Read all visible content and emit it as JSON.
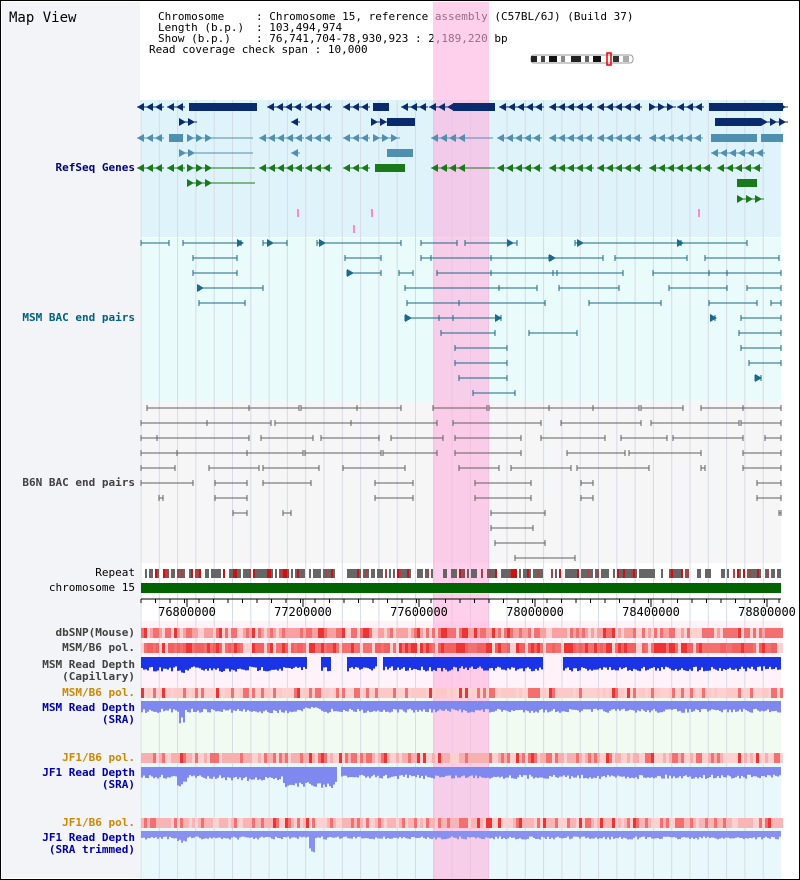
{
  "view_title": "Map View",
  "info": {
    "chromosome_label": "Chromosome",
    "chromosome_value": "Chromosome 15, reference assembly (C57BL/6J) (Build 37)",
    "length_label": "Length (b.p.)",
    "length_value": "103,494,974",
    "show_label": "Show (b.p.)",
    "show_value": "76,741,704-78,930,923 : 2,189,220 bp",
    "span_label": "Read coverage check span",
    "span_value": "10,000"
  },
  "tracks": {
    "refseq": "RefSeq Genes",
    "msm_bac": "MSM BAC end pairs",
    "b6n_bac": "B6N BAC end pairs",
    "repeat": "Repeat",
    "chromosome": "chromosome 15",
    "dbsnp": "dbSNP(Mouse)",
    "msm_b6_pol_1": "MSM/B6 pol.",
    "msm_depth_cap_1": "MSM Read Depth",
    "msm_depth_cap_2": "(Capillary)",
    "msm_b6_pol_2": "MSM/B6 pol.",
    "msm_depth_sra_1": "MSM Read Depth",
    "msm_depth_sra_2": "(SRA)",
    "jf1_pol_1": "JF1/B6 pol.",
    "jf1_depth_sra_1": "JF1 Read Depth",
    "jf1_depth_sra_2": "(SRA)",
    "jf1_pol_2": "JF1/B6 pol.",
    "jf1_depth_trim_1": "JF1 Read Depth",
    "jf1_depth_trim_2": "(SRA trimmed)"
  },
  "axis": {
    "ticks": [
      "76800000",
      "77200000",
      "77600000",
      "78000000",
      "78400000",
      "78800000"
    ]
  },
  "colors": {
    "refseq_label": "#000080",
    "msm_label": "#006080",
    "b6n_label": "#404040",
    "orange_label": "#cc8800",
    "blue_label": "#0000aa",
    "highlight": "#ffb0e0",
    "chromosome_bar": "#006400"
  }
}
